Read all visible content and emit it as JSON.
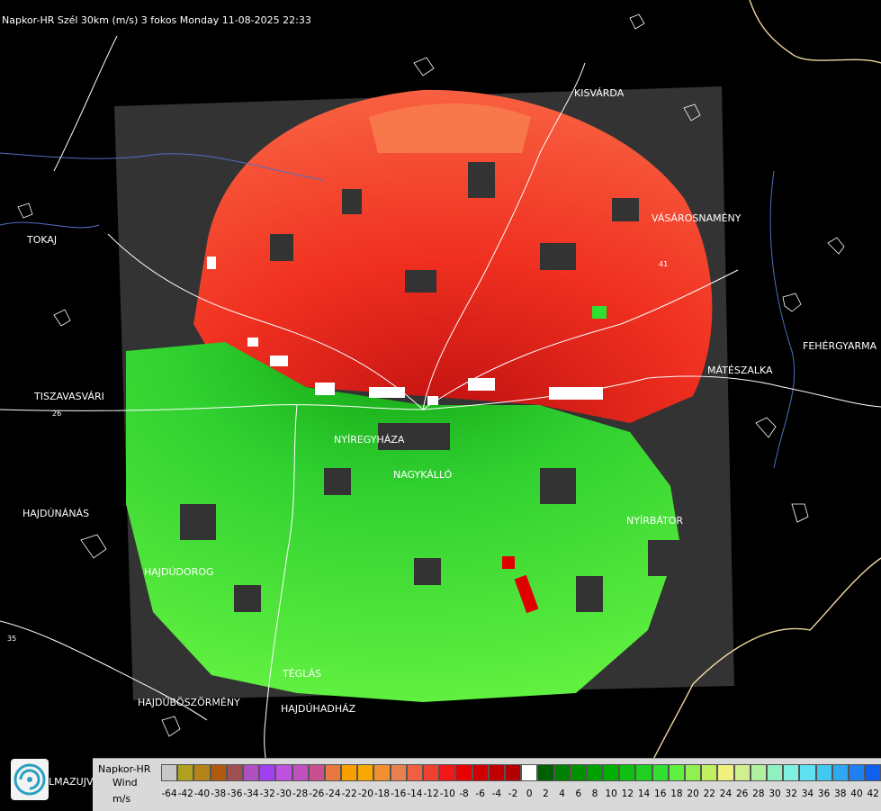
{
  "title": "Napkor-HR Szél 30km (m/s) 3 fokos Monday 11-08-2025 22:33",
  "cities": [
    {
      "id": "kisvarda",
      "label": "KISVÁRDA"
    },
    {
      "id": "tokaj",
      "label": "TOKAJ"
    },
    {
      "id": "vasarosnameny",
      "label": "VÁSÁROSNAMÉNY"
    },
    {
      "id": "fehergyarmat",
      "label": "FEHÉRGYARMA"
    },
    {
      "id": "mateszalka",
      "label": "MÁTÉSZALKA"
    },
    {
      "id": "tiszavasvari",
      "label": "TISZAVASVÁRI"
    },
    {
      "id": "nyiregyhaza",
      "label": "NYÍREGYHÁZA"
    },
    {
      "id": "nagykallo",
      "label": "NAGYKÁLLÓ"
    },
    {
      "id": "hajdunanas",
      "label": "HAJDÚNÁNÁS"
    },
    {
      "id": "nyirbator",
      "label": "NYÍRBÁTOR"
    },
    {
      "id": "hajdudorog",
      "label": "HAJDÚDOROG"
    },
    {
      "id": "tegla",
      "label": "TÉGLÁS"
    },
    {
      "id": "hajduboszormeny",
      "label": "HAJDÚBÖSZÖRMÉNY"
    },
    {
      "id": "hajduhadhaz",
      "label": "HAJDÚHADHÁZ"
    },
    {
      "id": "almazujvar",
      "label": "LMAZUJVÁR"
    }
  ],
  "road_numbers": [
    "35",
    "26",
    "41"
  ],
  "legend": {
    "line1": "Napkor-HR",
    "line2": "Wind",
    "line3": "m/s",
    "colors": [
      "#c8c8c8",
      "#b0a020",
      "#b58418",
      "#b05a10",
      "#a05050",
      "#b050c0",
      "#a040f0",
      "#c050e0",
      "#c050c0",
      "#c85090",
      "#e87840",
      "#f8a000",
      "#f8a800",
      "#f09030",
      "#e88050",
      "#f06040",
      "#f04030",
      "#f01818",
      "#e80000",
      "#d00000",
      "#c00000",
      "#b00000",
      "#ffffff",
      "#006000",
      "#008000",
      "#009000",
      "#00a000",
      "#00b000",
      "#10c010",
      "#20d020",
      "#30e030",
      "#60f040",
      "#90f050",
      "#c0f060",
      "#f0f080",
      "#d0f090",
      "#b0f0a0",
      "#90f0c0",
      "#80f0e0",
      "#60e0f0",
      "#40c8f0",
      "#30a8f0",
      "#2080f0",
      "#1060f0",
      "#0030e0",
      "#0000d0"
    ],
    "ticks": [
      "-64",
      "-42",
      "-40",
      "-38",
      "-36",
      "-34",
      "-32",
      "-30",
      "-28",
      "-26",
      "-24",
      "-22",
      "-20",
      "-18",
      "-16",
      "-14",
      "-12",
      "-10",
      "-8",
      "-6",
      "-4",
      "-2",
      "0",
      "2",
      "4",
      "6",
      "8",
      "10",
      "12",
      "14",
      "16",
      "18",
      "20",
      "22",
      "24",
      "26",
      "28",
      "30",
      "32",
      "34",
      "36",
      "38",
      "40",
      "42"
    ]
  },
  "colors": {
    "background": "#000000",
    "no_data": "#333333",
    "inbound": "#e82010",
    "outbound": "#30d030",
    "borders": "#f0d8a0",
    "rivers": "#5070c0"
  }
}
